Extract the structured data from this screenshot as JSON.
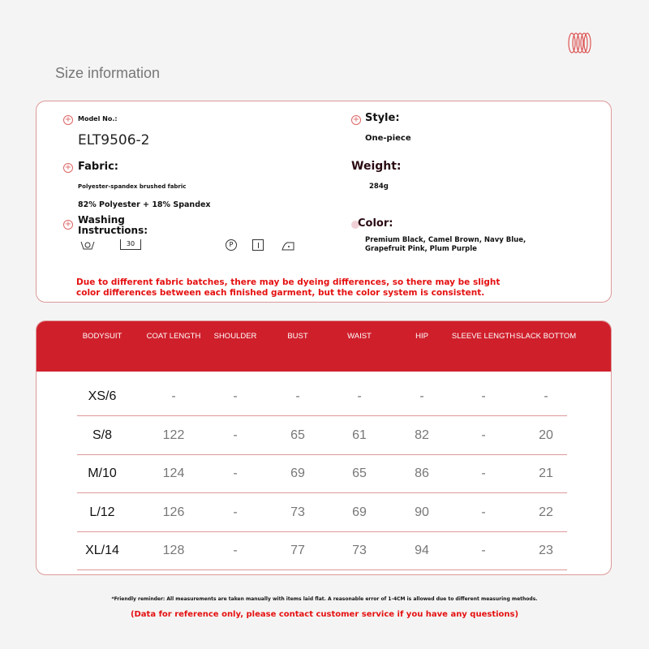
{
  "title": "Size information",
  "colors": {
    "accent": "#cf1f2b",
    "warning": "#e51010"
  },
  "info": {
    "model_label": "Model No.:",
    "model_value": "ELT9506-2",
    "fabric_label": "Fabric:",
    "fabric_line1": "Polyester-spandex brushed fabric",
    "fabric_line2": "82% Polyester + 18% Spandex",
    "washing_label": "Washing\nInstructions:",
    "wash_temp": "30",
    "wash_icons": [
      "hand-wash-icon",
      "wash-30-icon",
      "dry-clean-p-icon",
      "tumble-dry-icon",
      "iron-icon"
    ],
    "dry_clean_letter": "P",
    "style_label": "Style:",
    "style_value": "One-piece",
    "weight_label": "Weight:",
    "weight_value": "284g",
    "color_label": "Color:",
    "color_line1": "Premium Black, Camel Brown, Navy Blue,",
    "color_line2": "Grapefruit Pink, Plum Purple",
    "disclaimer_line1": "Due to different fabric batches, there may be dyeing differences, so there may be slight",
    "disclaimer_line2": "color differences between each finished garment, but the color system is consistent."
  },
  "table": {
    "headers": [
      "BODYSUIT",
      "COAT LENGTH",
      "SHOULDER",
      "BUST",
      "WAIST",
      "HIP",
      "SLEEVE LENGTH",
      "SLACK BOTTOM"
    ],
    "rows": [
      [
        "XS/6",
        "-",
        "-",
        "-",
        "-",
        "-",
        "-",
        "-"
      ],
      [
        "S/8",
        "122",
        "-",
        "65",
        "61",
        "82",
        "-",
        "20"
      ],
      [
        "M/10",
        "124",
        "-",
        "69",
        "65",
        "86",
        "-",
        "21"
      ],
      [
        "L/12",
        "126",
        "-",
        "73",
        "69",
        "90",
        "-",
        "22"
      ],
      [
        "XL/14",
        "128",
        "-",
        "77",
        "73",
        "94",
        "-",
        "23"
      ]
    ]
  },
  "footer": {
    "reminder": "*Friendly reminder: All measurements are taken manually with items laid flat. A reasonable error of 1-4CM is allowed due to different measuring methods.",
    "reference": "(Data for reference only, please contact customer service if you have any questions)"
  }
}
